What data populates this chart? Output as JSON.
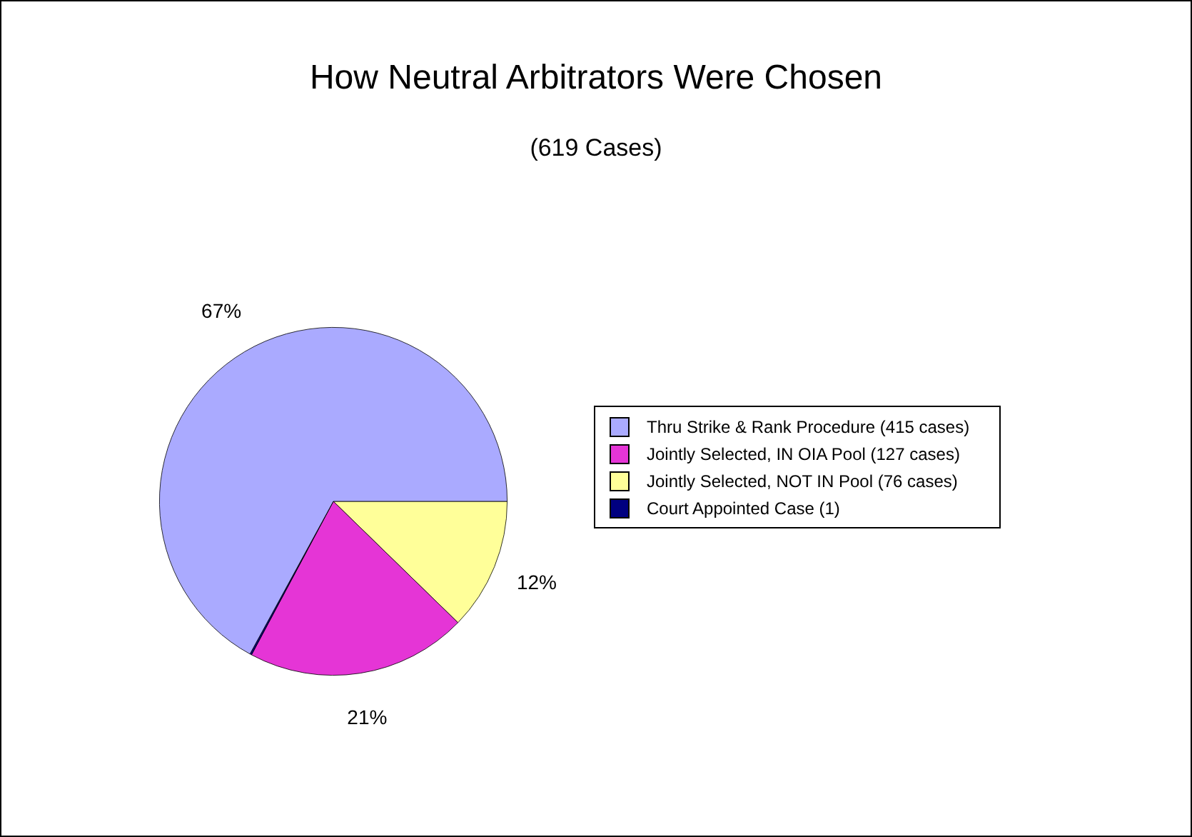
{
  "chart_data": {
    "type": "pie",
    "title": "How Neutral Arbitrators Were Chosen",
    "subtitle": "(619 Cases)",
    "categories": [
      "Thru Strike & Rank Procedure (415 cases)",
      "Jointly Selected, IN OIA Pool (127 cases)",
      "Jointly Selected, NOT IN Pool (76 cases)",
      "Court Appointed Case (1)"
    ],
    "values": [
      67.04,
      20.52,
      12.28,
      0.16
    ],
    "colors": [
      "#aaaaff",
      "#e535d6",
      "#ffff99",
      "#000080"
    ],
    "value_labels": [
      "67%",
      "21%",
      "12%",
      null
    ],
    "legend": "right"
  }
}
